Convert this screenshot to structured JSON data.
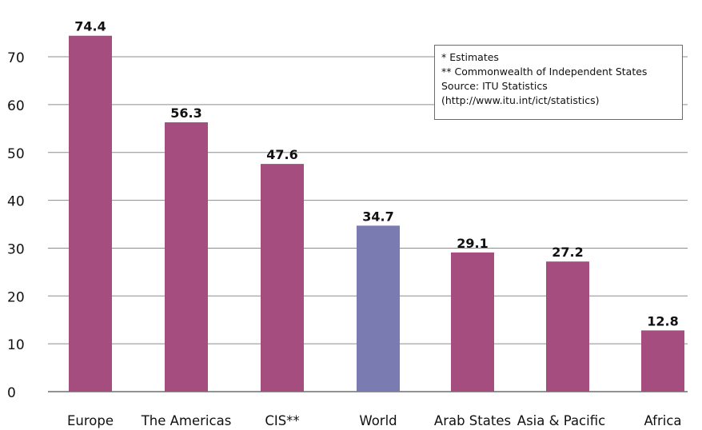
{
  "chart_data": {
    "type": "bar",
    "title": "",
    "xlabel": "",
    "ylabel": "",
    "ylim": [
      0,
      75
    ],
    "y_ticks": [
      0,
      10,
      20,
      30,
      40,
      50,
      60,
      70
    ],
    "grid": "horizontal",
    "categories": [
      "Europe",
      "The Americas",
      "CIS**",
      "World",
      "Arab States",
      "Asia & Pacific",
      "Africa"
    ],
    "values": [
      74.4,
      56.3,
      47.6,
      34.7,
      29.1,
      27.2,
      12.8
    ],
    "data_labels": [
      "74.4",
      "56.3",
      "47.6",
      "34.7",
      "29.1",
      "27.2",
      "12.8"
    ],
    "bar_colors": [
      "#a64d7f",
      "#a64d7f",
      "#a64d7f",
      "#7a7bb1",
      "#a64d7f",
      "#a64d7f",
      "#a64d7f"
    ],
    "annotation_lines": [
      "*  Estimates",
      "** Commonwealth of Independent States",
      "Source:  ITU Statistics",
      "(http://www.itu.int/ict/statistics)"
    ],
    "legend_placement": "top-right"
  },
  "colors": {
    "bar_primary": "#a64d7f",
    "bar_highlight": "#7a7bb1",
    "grid": "#8d8d8d",
    "axis": "#6f6f6f",
    "text": "#111111"
  }
}
